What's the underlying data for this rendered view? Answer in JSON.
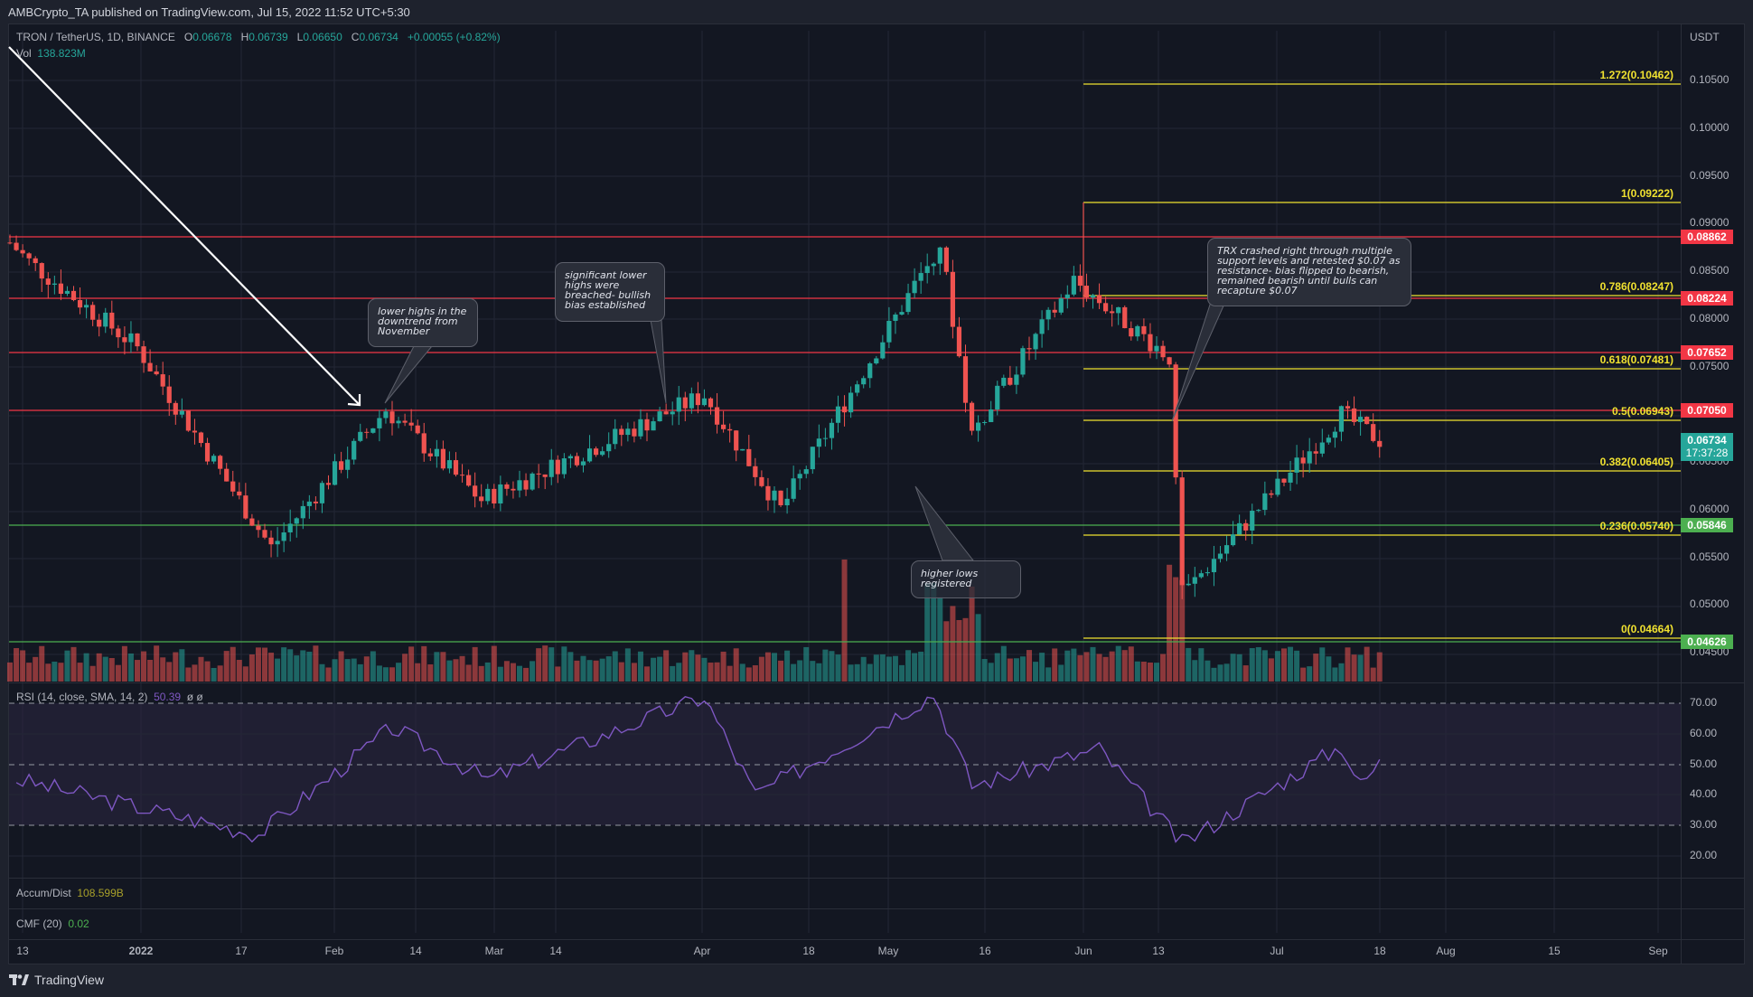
{
  "header": {
    "publish_line": "AMBCrypto_TA published on TradingView.com, Jul 15, 2022 11:52 UTC+5:30"
  },
  "symbol": {
    "title": "TRON / TetherUS, 1D, BINANCE",
    "open_label": "O",
    "open": "0.06678",
    "high_label": "H",
    "high": "0.06739",
    "low_label": "L",
    "low": "0.06650",
    "close_label": "C",
    "close": "0.06734",
    "change": "+0.00055 (+0.82%)"
  },
  "volume": {
    "label": "Vol",
    "value": "138.823M"
  },
  "price_axis": {
    "currency": "USDT",
    "ticks": [
      "0.10500",
      "0.10000",
      "0.09500",
      "0.09000",
      "0.08500",
      "0.08000",
      "0.07500",
      "0.06500",
      "0.06000",
      "0.05500",
      "0.05000",
      "0.04500"
    ],
    "current_price": "0.06734",
    "countdown": "17:37:28"
  },
  "horizontal_levels": [
    {
      "price": "0.08862",
      "color": "#f23645",
      "kind": "resistance"
    },
    {
      "price": "0.08224",
      "color": "#f23645",
      "kind": "resistance"
    },
    {
      "price": "0.07652",
      "color": "#f23645",
      "kind": "resistance"
    },
    {
      "price": "0.07050",
      "color": "#f23645",
      "kind": "resistance"
    },
    {
      "price": "0.05846",
      "color": "#4caf50",
      "kind": "support"
    },
    {
      "price": "0.04626",
      "color": "#4caf50",
      "kind": "support"
    }
  ],
  "fib_levels": [
    {
      "label": "1.272(0.10462)"
    },
    {
      "label": "1(0.09222)"
    },
    {
      "label": "0.786(0.08247)"
    },
    {
      "label": "0.618(0.07481)"
    },
    {
      "label": "0.5(0.06943)"
    },
    {
      "label": "0.382(0.06405)"
    },
    {
      "label": "0.236(0.05740)"
    },
    {
      "label": "0(0.04664)"
    }
  ],
  "annotations": [
    {
      "text": "lower highs in the downtrend from November"
    },
    {
      "text": "significant lower highs were breached- bullish bias established"
    },
    {
      "text": "higher lows registered"
    },
    {
      "text": "TRX crashed right through multiple support levels and retested $0.07 as resistance- bias flipped to bearish, remained bearish until bulls can recapture $0.07"
    }
  ],
  "rsi": {
    "label": "RSI (14, close, SMA, 14, 2)",
    "value": "50.39",
    "extra": "ø  ø",
    "ticks": [
      "70.00",
      "60.00",
      "50.00",
      "40.00",
      "30.00",
      "20.00"
    ]
  },
  "accum_dist": {
    "label": "Accum/Dist",
    "value": "108.599B"
  },
  "cmf": {
    "label": "CMF (20)",
    "value": "0.02"
  },
  "time_axis": {
    "labels": [
      "13",
      "2022",
      "17",
      "Feb",
      "14",
      "Mar",
      "14",
      "Apr",
      "18",
      "May",
      "16",
      "Jun",
      "13",
      "Jul",
      "18",
      "Aug",
      "15",
      "Sep"
    ]
  },
  "footer": {
    "brand": "TradingView"
  },
  "colors": {
    "up": "#26a69a",
    "down": "#ef5350",
    "resistance": "#f23645",
    "support": "#4caf50",
    "fib": "#f0e130",
    "rsi": "#7e57c2",
    "background": "#131722"
  },
  "chart_data": [
    {
      "type": "candlestick",
      "title": "TRON / TetherUS, 1D, BINANCE",
      "xlabel": "",
      "ylabel": "USDT",
      "ylim": [
        0.0435,
        0.1075
      ],
      "x_range": [
        "2021-12-12",
        "2022-07-15"
      ],
      "approx_closes_monthly": {
        "2021-12-15": 0.086,
        "2022-01-01": 0.077,
        "2022-01-22": 0.056,
        "2022-02-09": 0.0705,
        "2022-02-24": 0.061,
        "2022-03-31": 0.072,
        "2022-04-12": 0.06,
        "2022-05-07": 0.088,
        "2022-05-12": 0.068,
        "2022-05-28": 0.084,
        "2022-06-12": 0.076,
        "2022-06-14": 0.051,
        "2022-07-09": 0.07,
        "2022-07-15": 0.0673
      },
      "last_bar": {
        "open": 0.06678,
        "high": 0.06739,
        "low": 0.0665,
        "close": 0.06734
      },
      "horizontal_levels": [
        0.08862,
        0.08224,
        0.07652,
        0.0705,
        0.05846,
        0.04626
      ],
      "fibonacci": {
        "1.272": 0.10462,
        "1": 0.09222,
        "0.786": 0.08247,
        "0.618": 0.07481,
        "0.5": 0.06943,
        "0.382": 0.06405,
        "0.236": 0.0574,
        "0": 0.04664
      },
      "volume_last": "138.823M"
    },
    {
      "type": "line",
      "title": "RSI (14, close, SMA, 14, 2)",
      "ylim": [
        15,
        75
      ],
      "bands": [
        30,
        50,
        70
      ],
      "last_value": 50.39,
      "approx_points": {
        "2021-12-13": 45,
        "2022-01-20": 27,
        "2022-02-10": 62,
        "2022-02-25": 45,
        "2022-03-31": 72,
        "2022-04-08": 40,
        "2022-05-06": 73,
        "2022-05-12": 43,
        "2022-06-01": 55,
        "2022-06-14": 24,
        "2022-07-09": 56,
        "2022-07-12": 43,
        "2022-07-15": 50.39
      }
    }
  ]
}
